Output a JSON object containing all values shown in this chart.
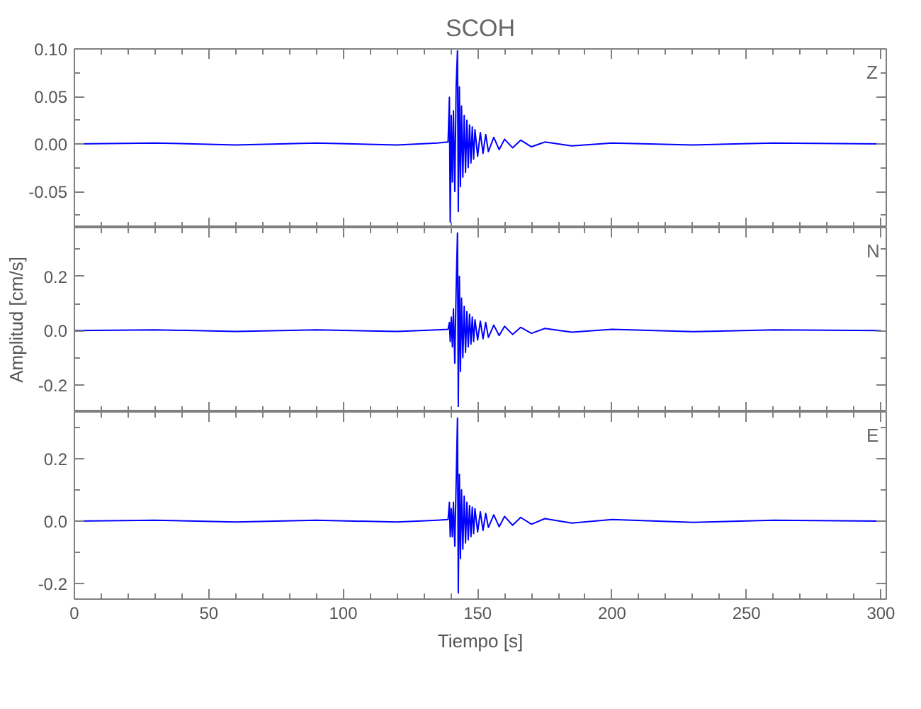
{
  "chart_data": [
    {
      "type": "line",
      "title": "SCOH",
      "annotations": [
        "Z"
      ],
      "tick_labels": "y",
      "xlim": [
        0,
        302
      ],
      "xticks": [
        0,
        {
          "value": 10,
          "label": null
        },
        {
          "value": 20,
          "label": null
        },
        {
          "value": 30,
          "label": null
        },
        {
          "value": 40,
          "label": null
        },
        50,
        {
          "value": 60,
          "label": null
        },
        {
          "value": 70,
          "label": null
        },
        {
          "value": 80,
          "label": null
        },
        {
          "value": 90,
          "label": null
        },
        100,
        {
          "value": 110,
          "label": null
        },
        {
          "value": 120,
          "label": null
        },
        {
          "value": 130,
          "label": null
        },
        {
          "value": 140,
          "label": null
        },
        150,
        {
          "value": 160,
          "label": null
        },
        {
          "value": 170,
          "label": null
        },
        {
          "value": 180,
          "label": null
        },
        {
          "value": 190,
          "label": null
        },
        200,
        {
          "value": 210,
          "label": null
        },
        {
          "value": 220,
          "label": null
        },
        {
          "value": 230,
          "label": null
        },
        {
          "value": 240,
          "label": null
        },
        250,
        {
          "value": 260,
          "label": null
        },
        {
          "value": 270,
          "label": null
        },
        {
          "value": 280,
          "label": null
        },
        {
          "value": 290,
          "label": null
        },
        300
      ],
      "ylim": [
        -0.088,
        0.1
      ],
      "yticks": [
        {
          "value": -0.075,
          "label": null
        },
        {
          "value": -0.05,
          "label": "-0.05"
        },
        {
          "value": -0.025,
          "label": null
        },
        {
          "value": 0,
          "label": "0.00"
        },
        {
          "value": 0.025,
          "label": null
        },
        {
          "value": 0.05,
          "label": "0.05"
        },
        {
          "value": 0.075,
          "label": null
        },
        {
          "value": 0.1,
          "label": "0.10"
        }
      ],
      "series": [
        {
          "color": "#0000ff",
          "x": [
            0,
            30,
            60,
            90,
            120,
            135,
            139.0,
            139.5,
            139.8,
            140.2,
            140.6,
            141.0,
            141.5,
            142.0,
            142.5,
            142.8,
            143.2,
            143.6,
            144.0,
            144.5,
            145.0,
            145.5,
            146,
            146.5,
            147,
            147.5,
            148,
            148.5,
            149,
            150,
            151,
            152,
            153,
            154,
            156,
            158,
            160,
            163,
            166,
            170,
            175,
            185,
            200,
            230,
            260,
            300
          ],
          "values": [
            0,
            0.001,
            -0.001,
            0.001,
            -0.001,
            0.001,
            0.002,
            0.049,
            -0.082,
            0.03,
            -0.04,
            0.035,
            -0.05,
            0.06,
            0.098,
            -0.071,
            0.06,
            -0.045,
            0.04,
            -0.035,
            0.03,
            -0.03,
            0.025,
            -0.025,
            0.02,
            -0.02,
            0.018,
            -0.016,
            0.015,
            -0.013,
            0.012,
            -0.01,
            0.01,
            -0.008,
            0.007,
            -0.006,
            0.005,
            -0.004,
            0.004,
            -0.003,
            0.002,
            -0.002,
            0.001,
            -0.001,
            0.001,
            0
          ]
        }
      ]
    },
    {
      "type": "line",
      "ylabel": "Amplitud [cm/s]",
      "annotations": [
        "N"
      ],
      "tick_labels": "y",
      "xlim": [
        0,
        302
      ],
      "xticks": [
        0,
        {
          "value": 10,
          "label": null
        },
        {
          "value": 20,
          "label": null
        },
        {
          "value": 30,
          "label": null
        },
        {
          "value": 40,
          "label": null
        },
        50,
        {
          "value": 60,
          "label": null
        },
        {
          "value": 70,
          "label": null
        },
        {
          "value": 80,
          "label": null
        },
        {
          "value": 90,
          "label": null
        },
        100,
        {
          "value": 110,
          "label": null
        },
        {
          "value": 120,
          "label": null
        },
        {
          "value": 130,
          "label": null
        },
        {
          "value": 140,
          "label": null
        },
        150,
        {
          "value": 160,
          "label": null
        },
        {
          "value": 170,
          "label": null
        },
        {
          "value": 180,
          "label": null
        },
        {
          "value": 190,
          "label": null
        },
        200,
        {
          "value": 210,
          "label": null
        },
        {
          "value": 220,
          "label": null
        },
        {
          "value": 230,
          "label": null
        },
        {
          "value": 240,
          "label": null
        },
        250,
        {
          "value": 260,
          "label": null
        },
        {
          "value": 270,
          "label": null
        },
        {
          "value": 280,
          "label": null
        },
        {
          "value": 290,
          "label": null
        },
        300
      ],
      "ylim": [
        -0.3,
        0.38
      ],
      "yticks": [
        {
          "value": -0.3,
          "label": null
        },
        {
          "value": -0.2,
          "label": "-0.2"
        },
        {
          "value": -0.1,
          "label": null
        },
        {
          "value": 0,
          "label": "0.0"
        },
        {
          "value": 0.1,
          "label": null
        },
        {
          "value": 0.2,
          "label": "0.2"
        },
        {
          "value": 0.3,
          "label": null
        }
      ],
      "series": [
        {
          "color": "#0000ff",
          "x": [
            0,
            30,
            60,
            90,
            120,
            135,
            139.0,
            139.5,
            139.8,
            140.2,
            140.6,
            141.0,
            141.5,
            142.0,
            142.5,
            142.8,
            143.2,
            143.6,
            144.0,
            144.5,
            145.0,
            145.5,
            146,
            146.5,
            147,
            147.5,
            148,
            148.5,
            149,
            150,
            151,
            152,
            153,
            154,
            156,
            158,
            160,
            163,
            166,
            170,
            175,
            185,
            200,
            230,
            260,
            300
          ],
          "values": [
            0,
            0.003,
            -0.003,
            0.003,
            -0.003,
            0.003,
            0.005,
            0.03,
            -0.04,
            0.05,
            -0.06,
            0.08,
            -0.12,
            0.15,
            0.36,
            -0.28,
            0.2,
            -0.15,
            0.12,
            -0.1,
            0.09,
            -0.08,
            0.07,
            -0.06,
            0.06,
            -0.05,
            0.05,
            -0.04,
            0.04,
            -0.035,
            0.035,
            -0.03,
            0.03,
            -0.025,
            0.02,
            -0.018,
            0.016,
            -0.014,
            0.012,
            -0.01,
            0.008,
            -0.006,
            0.005,
            -0.004,
            0.003,
            0
          ]
        }
      ]
    },
    {
      "type": "line",
      "xlabel": "Tiempo [s]",
      "annotations": [
        "E"
      ],
      "xlim": [
        0,
        302
      ],
      "xticks": [
        0,
        {
          "value": 10,
          "label": null
        },
        {
          "value": 20,
          "label": null
        },
        {
          "value": 30,
          "label": null
        },
        {
          "value": 40,
          "label": null
        },
        50,
        {
          "value": 60,
          "label": null
        },
        {
          "value": 70,
          "label": null
        },
        {
          "value": 80,
          "label": null
        },
        {
          "value": 90,
          "label": null
        },
        100,
        {
          "value": 110,
          "label": null
        },
        {
          "value": 120,
          "label": null
        },
        {
          "value": 130,
          "label": null
        },
        {
          "value": 140,
          "label": null
        },
        150,
        {
          "value": 160,
          "label": null
        },
        {
          "value": 170,
          "label": null
        },
        {
          "value": 180,
          "label": null
        },
        {
          "value": 190,
          "label": null
        },
        200,
        {
          "value": 210,
          "label": null
        },
        {
          "value": 220,
          "label": null
        },
        {
          "value": 230,
          "label": null
        },
        {
          "value": 240,
          "label": null
        },
        250,
        {
          "value": 260,
          "label": null
        },
        {
          "value": 270,
          "label": null
        },
        {
          "value": 280,
          "label": null
        },
        {
          "value": 290,
          "label": null
        },
        300
      ],
      "ylim": [
        -0.25,
        0.35
      ],
      "yticks": [
        {
          "value": -0.2,
          "label": "-0.2"
        },
        {
          "value": -0.1,
          "label": null
        },
        {
          "value": 0,
          "label": "0.0"
        },
        {
          "value": 0.1,
          "label": null
        },
        {
          "value": 0.2,
          "label": "0.2"
        },
        {
          "value": 0.3,
          "label": null
        }
      ],
      "series": [
        {
          "color": "#0000ff",
          "x": [
            0,
            30,
            60,
            90,
            120,
            135,
            139.0,
            139.5,
            139.8,
            140.2,
            140.6,
            141.0,
            141.5,
            142.0,
            142.5,
            142.8,
            143.2,
            143.6,
            144.0,
            144.5,
            145.0,
            145.5,
            146,
            146.5,
            147,
            147.5,
            148,
            148.5,
            149,
            150,
            151,
            152,
            153,
            154,
            156,
            158,
            160,
            163,
            166,
            170,
            175,
            185,
            200,
            230,
            260,
            300
          ],
          "values": [
            0,
            0.003,
            -0.003,
            0.003,
            -0.003,
            0.003,
            0.005,
            0.06,
            -0.05,
            0.04,
            -0.05,
            0.06,
            -0.08,
            0.12,
            0.33,
            -0.23,
            0.15,
            -0.12,
            0.1,
            -0.09,
            0.08,
            -0.07,
            0.06,
            -0.06,
            0.05,
            -0.05,
            0.045,
            -0.04,
            0.04,
            -0.035,
            0.03,
            -0.03,
            0.025,
            -0.02,
            0.02,
            -0.018,
            0.015,
            -0.013,
            0.012,
            -0.01,
            0.008,
            -0.006,
            0.005,
            -0.004,
            0.003,
            0
          ]
        }
      ]
    }
  ]
}
